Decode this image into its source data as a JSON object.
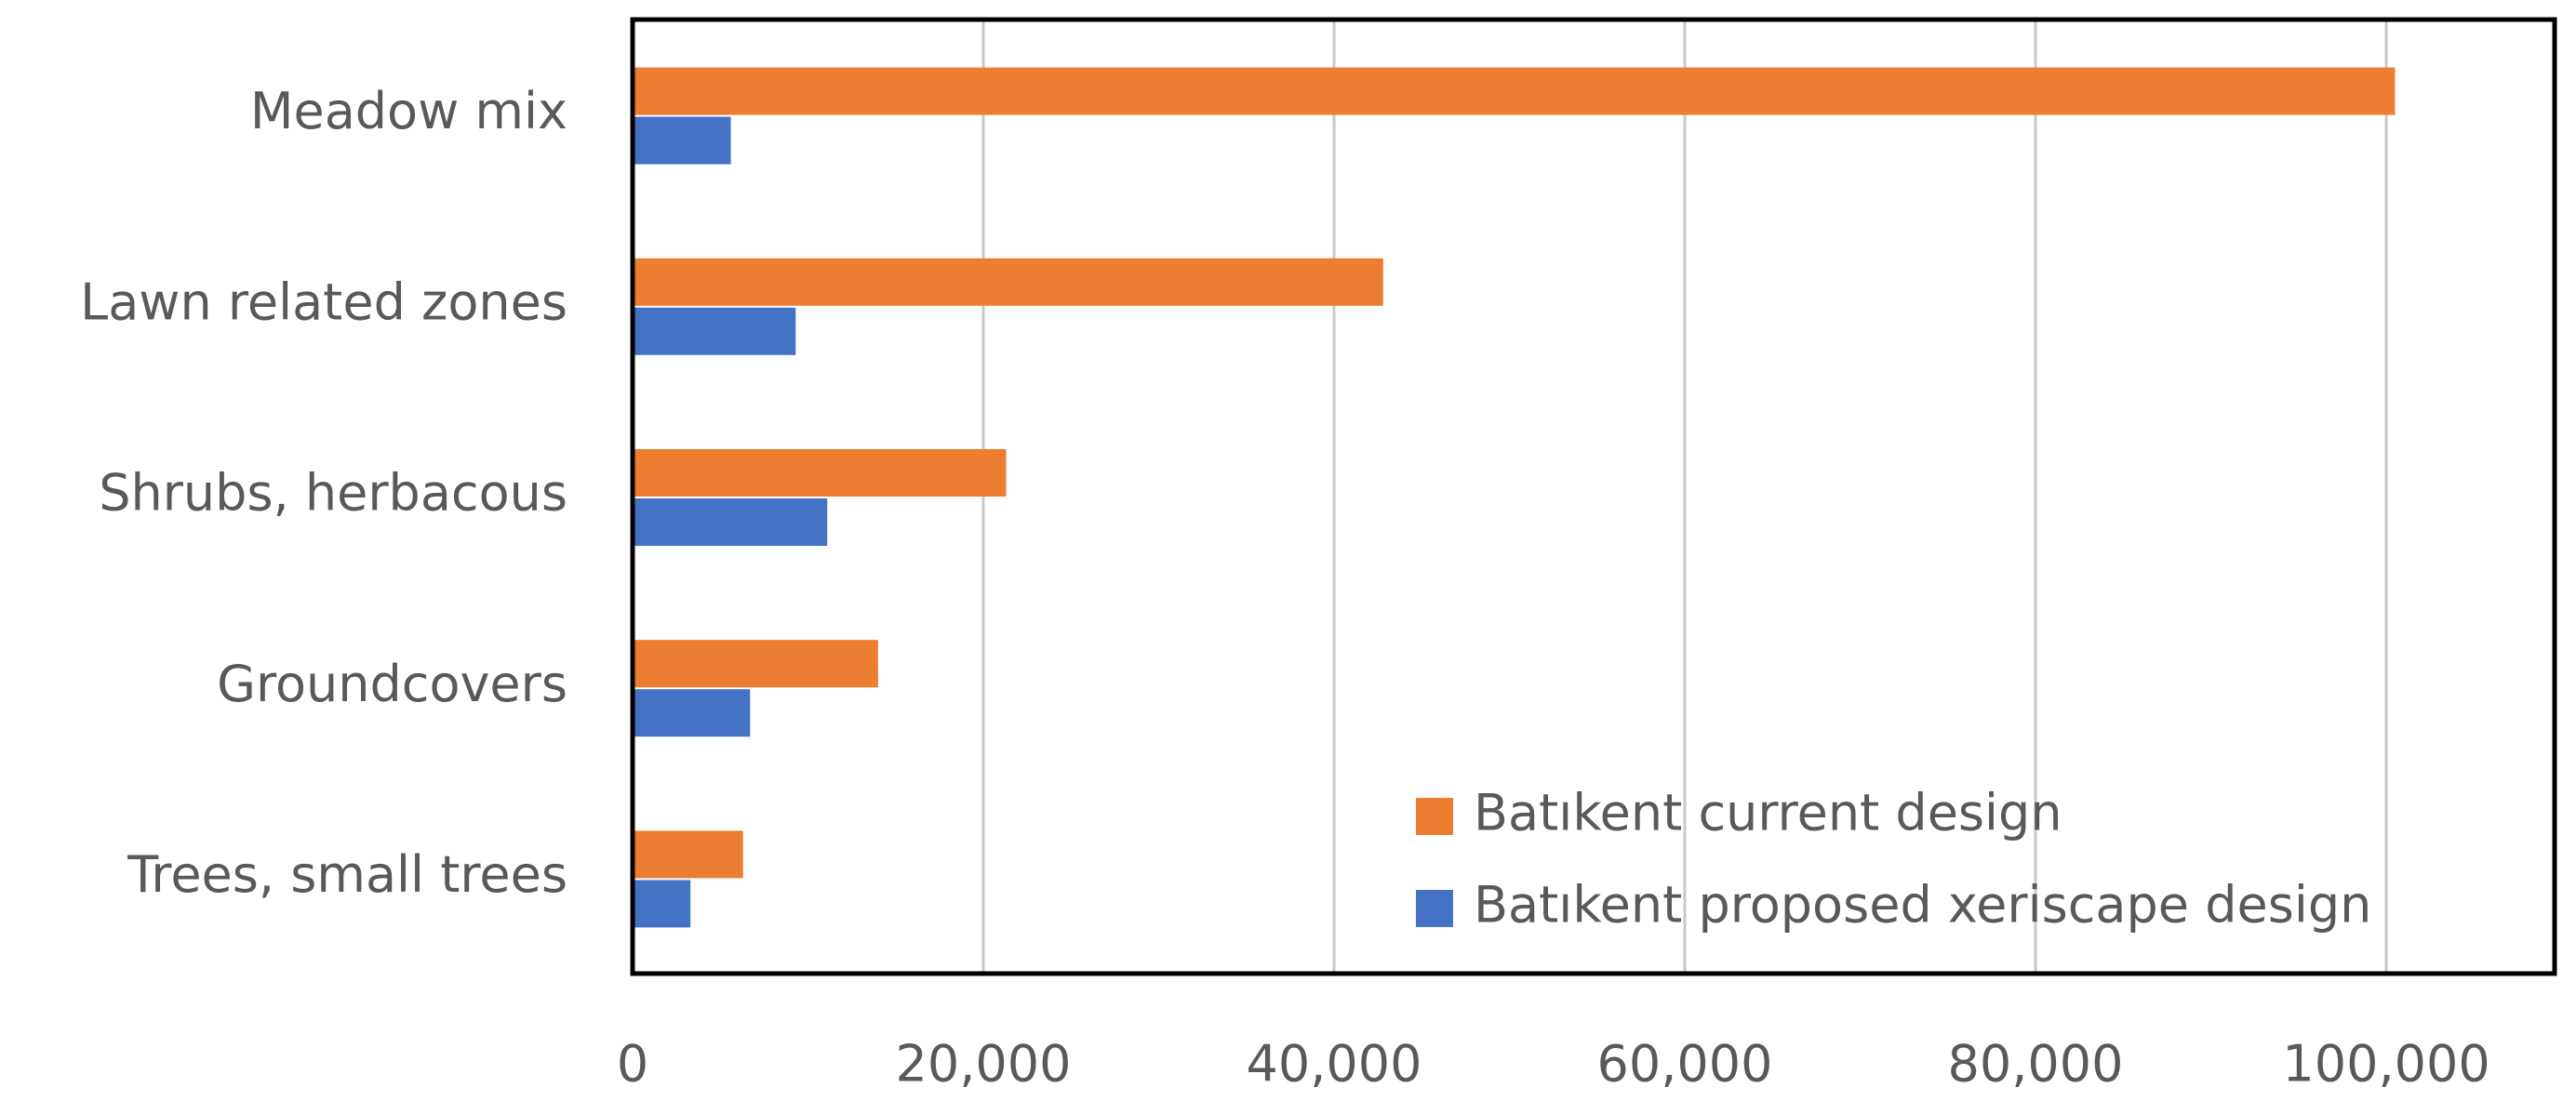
{
  "chart_data": {
    "type": "barh",
    "categories": [
      "Meadow mix",
      "Lawn related zones",
      "Shrubs, herbacous",
      "Groundcovers",
      "Trees, small trees"
    ],
    "series": [
      {
        "name": "Batıkent current design",
        "color": "#ed7d31",
        "values": [
          100500,
          42800,
          21300,
          14000,
          6300
        ]
      },
      {
        "name": "Batıkent proposed xeriscape design",
        "color": "#4472c4",
        "values": [
          5600,
          9300,
          11100,
          6700,
          3300
        ]
      }
    ],
    "xlim": [
      0,
      109600
    ],
    "xticks": [
      0,
      {
        "value": 20000,
        "label": "20,000"
      },
      {
        "value": 40000,
        "label": "40,000"
      },
      {
        "value": 60000,
        "label": "60,000"
      },
      {
        "value": 80000,
        "label": "80,000"
      },
      {
        "value": 100000,
        "label": "100,000"
      }
    ],
    "grid": true,
    "legend": "lower-right"
  }
}
